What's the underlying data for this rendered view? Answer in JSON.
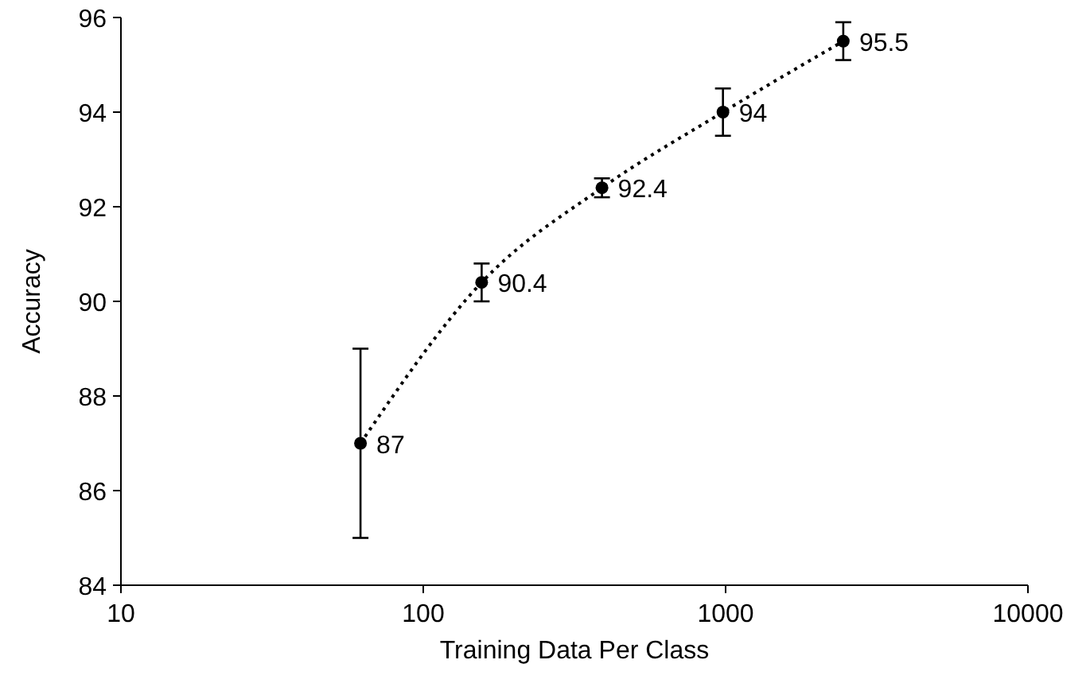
{
  "chart_data": {
    "type": "line",
    "xlabel": "Training Data Per Class",
    "ylabel": "Accuracy",
    "x": [
      62,
      156,
      390,
      980,
      2450
    ],
    "values": [
      87,
      90.4,
      92.4,
      94,
      95.5
    ],
    "errors": [
      2,
      0.4,
      0.2,
      0.5,
      0.4
    ],
    "color": "#000000",
    "log": "x",
    "xlim": [
      10,
      10000
    ],
    "xticks": [
      10,
      100,
      1000,
      10000
    ],
    "ylim": [
      84,
      96
    ],
    "yticks": [
      84,
      86,
      88,
      90,
      92,
      94,
      96
    ],
    "marker": "circle",
    "line_style": "dotted",
    "data_labels": true
  }
}
